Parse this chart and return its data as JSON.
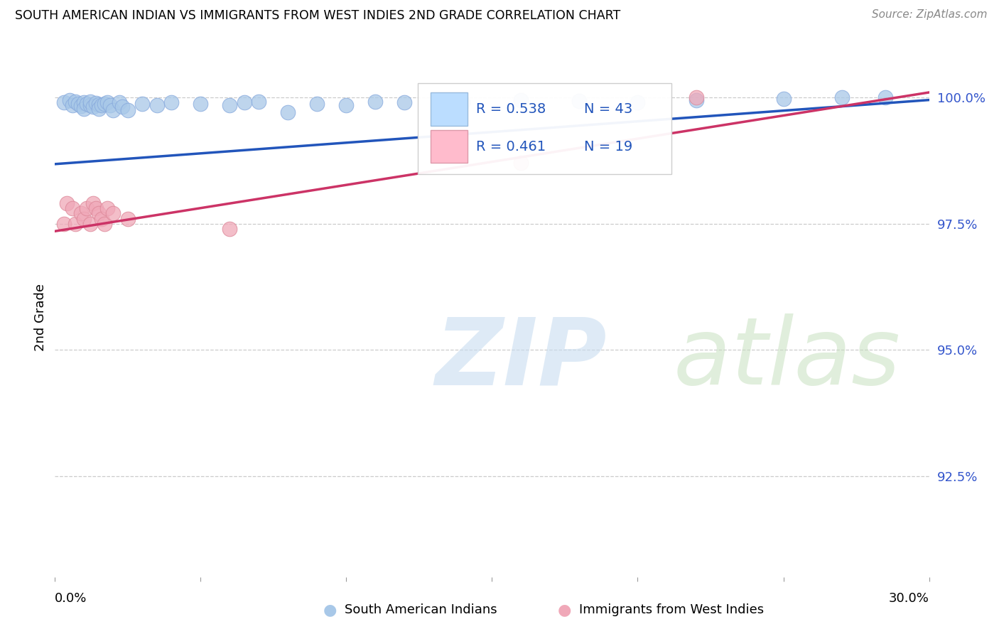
{
  "title": "SOUTH AMERICAN INDIAN VS IMMIGRANTS FROM WEST INDIES 2ND GRADE CORRELATION CHART",
  "source": "Source: ZipAtlas.com",
  "ylabel": "2nd Grade",
  "ytick_labels": [
    "100.0%",
    "97.5%",
    "95.0%",
    "92.5%"
  ],
  "ytick_values": [
    1.0,
    0.975,
    0.95,
    0.925
  ],
  "xlim": [
    0.0,
    0.3
  ],
  "ylim": [
    0.905,
    1.008
  ],
  "legend_blue_label": "R = 0.538",
  "legend_blue_n": "N = 43",
  "legend_pink_label": "R = 0.461",
  "legend_pink_n": "N = 19",
  "legend_bottom_blue": "South American Indians",
  "legend_bottom_pink": "Immigrants from West Indies",
  "blue_color": "#a8c8e8",
  "pink_color": "#f0a8b8",
  "blue_line_color": "#2255bb",
  "pink_line_color": "#cc3366",
  "blue_scatter_x": [
    0.003,
    0.005,
    0.006,
    0.007,
    0.008,
    0.009,
    0.01,
    0.01,
    0.011,
    0.012,
    0.012,
    0.013,
    0.014,
    0.015,
    0.015,
    0.016,
    0.017,
    0.018,
    0.019,
    0.02,
    0.022,
    0.023,
    0.025,
    0.03,
    0.035,
    0.04,
    0.05,
    0.06,
    0.065,
    0.07,
    0.08,
    0.09,
    0.1,
    0.11,
    0.12,
    0.14,
    0.16,
    0.18,
    0.2,
    0.22,
    0.25,
    0.27,
    0.285
  ],
  "blue_scatter_y": [
    0.999,
    0.9995,
    0.9985,
    0.9992,
    0.9988,
    0.9983,
    0.999,
    0.9978,
    0.9988,
    0.9985,
    0.9992,
    0.9982,
    0.9989,
    0.9986,
    0.9978,
    0.9985,
    0.9988,
    0.999,
    0.9985,
    0.9975,
    0.999,
    0.9982,
    0.9975,
    0.9988,
    0.9985,
    0.999,
    0.9988,
    0.9985,
    0.999,
    0.9992,
    0.997,
    0.9988,
    0.9985,
    0.9992,
    0.999,
    0.999,
    0.9995,
    0.9993,
    0.999,
    0.9995,
    0.9998,
    1.0,
    1.0
  ],
  "pink_scatter_x": [
    0.003,
    0.004,
    0.006,
    0.007,
    0.009,
    0.01,
    0.011,
    0.012,
    0.013,
    0.014,
    0.015,
    0.016,
    0.017,
    0.018,
    0.02,
    0.025,
    0.06,
    0.16,
    0.22
  ],
  "pink_scatter_y": [
    0.975,
    0.979,
    0.978,
    0.975,
    0.977,
    0.976,
    0.978,
    0.975,
    0.979,
    0.978,
    0.977,
    0.976,
    0.975,
    0.978,
    0.977,
    0.976,
    0.974,
    0.987,
    1.0
  ],
  "blue_line_x0": 0.0,
  "blue_line_y0": 0.9868,
  "blue_line_x1": 0.3,
  "blue_line_y1": 0.9995,
  "pink_line_x0": 0.0,
  "pink_line_y0": 0.9735,
  "pink_line_x1": 0.3,
  "pink_line_y1": 1.001
}
